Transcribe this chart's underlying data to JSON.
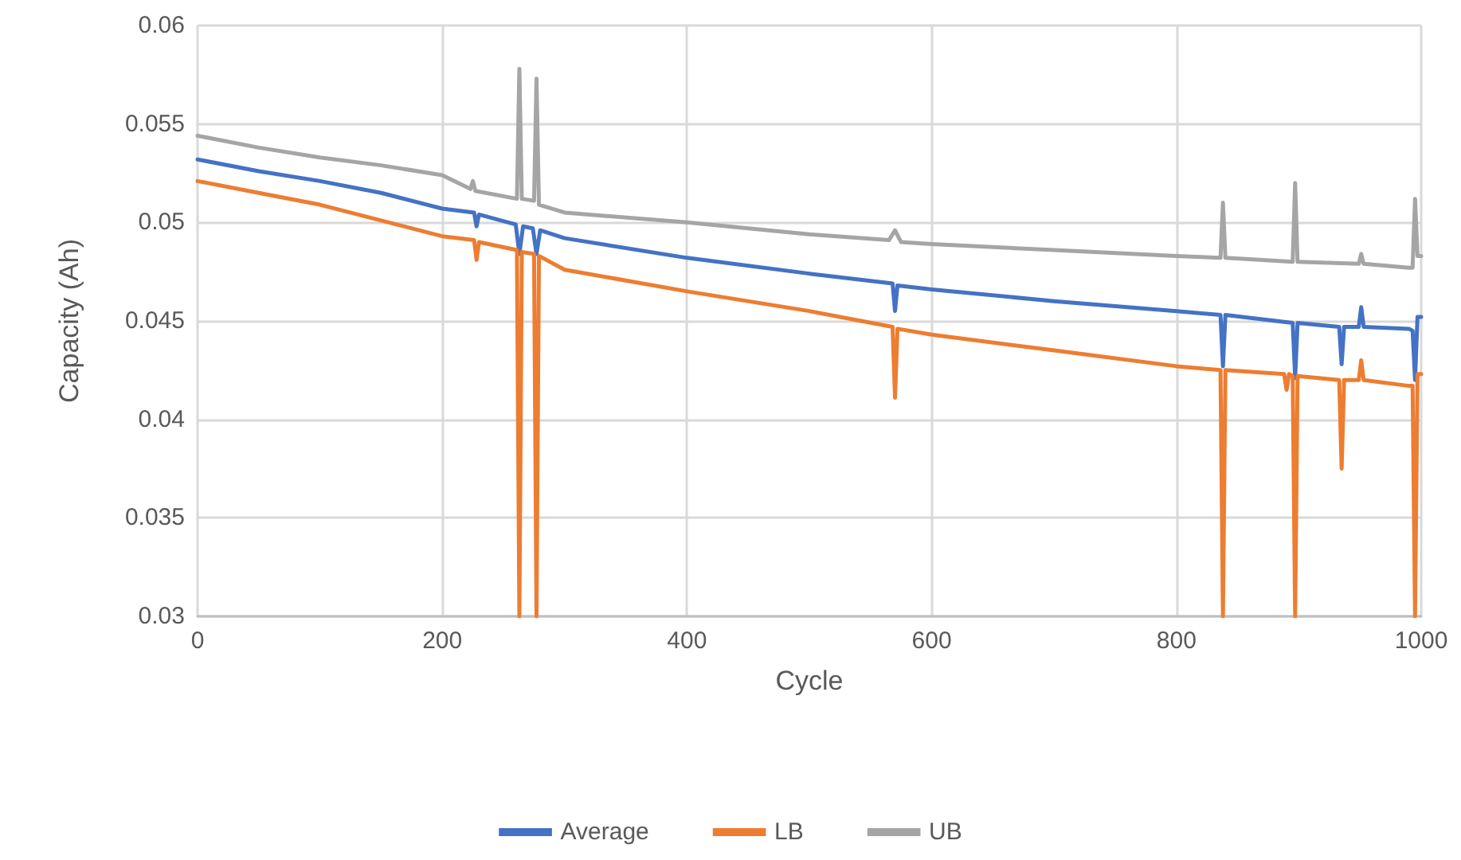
{
  "chart_data": {
    "type": "line",
    "xlabel": "Cycle",
    "ylabel": "Capacity (Ah)",
    "xlim": [
      0,
      1000
    ],
    "xticks": [
      0,
      200,
      400,
      600,
      800,
      1000
    ],
    "ylim": [
      0.03,
      0.06
    ],
    "yticks": [
      0.03,
      0.035,
      0.04,
      0.045,
      0.05,
      0.055,
      0.06
    ],
    "grid": true,
    "legend": "bottom",
    "marker": "none",
    "series": [
      {
        "name": "Average",
        "color": "#4472c4",
        "x": [
          0,
          50,
          100,
          150,
          200,
          226,
          228,
          230,
          260,
          263,
          266,
          274,
          277,
          280,
          300,
          400,
          500,
          568,
          570,
          572,
          600,
          700,
          800,
          836,
          838,
          840,
          895,
          897,
          899,
          933,
          935,
          937,
          949,
          951,
          953,
          990,
          993,
          995,
          997,
          1000
        ],
        "values": [
          0.0532,
          0.0526,
          0.0521,
          0.0515,
          0.0507,
          0.0505,
          0.0498,
          0.0504,
          0.0499,
          0.0484,
          0.0498,
          0.0497,
          0.0484,
          0.0496,
          0.0492,
          0.0482,
          0.0474,
          0.0469,
          0.0455,
          0.0468,
          0.0466,
          0.046,
          0.0455,
          0.0453,
          0.0427,
          0.0453,
          0.0449,
          0.0421,
          0.0449,
          0.0447,
          0.0428,
          0.0447,
          0.0447,
          0.0457,
          0.0447,
          0.0446,
          0.0445,
          0.042,
          0.0452,
          0.0452
        ]
      },
      {
        "name": "LB",
        "color": "#ed7d31",
        "x": [
          0,
          50,
          100,
          150,
          200,
          226,
          228,
          230,
          261,
          263,
          265,
          275,
          277,
          279,
          300,
          400,
          500,
          568,
          570,
          572,
          600,
          700,
          800,
          836,
          838,
          840,
          888,
          890,
          892,
          895,
          897,
          899,
          933,
          935,
          937,
          949,
          951,
          953,
          990,
          993,
          995,
          997,
          1000
        ],
        "values": [
          0.0521,
          0.0515,
          0.0509,
          0.0501,
          0.0493,
          0.0491,
          0.0481,
          0.049,
          0.0486,
          0.03,
          0.0485,
          0.0484,
          0.03,
          0.0483,
          0.0476,
          0.0465,
          0.0455,
          0.0447,
          0.0411,
          0.0446,
          0.0443,
          0.0435,
          0.0427,
          0.0425,
          0.03,
          0.0425,
          0.0423,
          0.0415,
          0.0423,
          0.0422,
          0.03,
          0.0422,
          0.042,
          0.0375,
          0.042,
          0.042,
          0.043,
          0.042,
          0.0417,
          0.0417,
          0.03,
          0.0423,
          0.0423
        ]
      },
      {
        "name": "UB",
        "color": "#a5a5a5",
        "x": [
          0,
          50,
          100,
          150,
          200,
          223,
          225,
          227,
          261,
          263,
          265,
          275,
          277,
          279,
          300,
          400,
          500,
          565,
          570,
          575,
          600,
          700,
          800,
          836,
          838,
          840,
          895,
          897,
          899,
          949,
          951,
          953,
          990,
          993,
          995,
          997,
          1000
        ],
        "values": [
          0.0544,
          0.0538,
          0.0533,
          0.0529,
          0.0524,
          0.0517,
          0.0521,
          0.0516,
          0.0512,
          0.0578,
          0.0512,
          0.0511,
          0.0573,
          0.0509,
          0.0505,
          0.05,
          0.0494,
          0.0491,
          0.0496,
          0.049,
          0.0489,
          0.0486,
          0.0483,
          0.0482,
          0.051,
          0.0482,
          0.048,
          0.052,
          0.048,
          0.0479,
          0.0484,
          0.0479,
          0.0477,
          0.0477,
          0.0512,
          0.0483,
          0.0483
        ]
      }
    ]
  }
}
